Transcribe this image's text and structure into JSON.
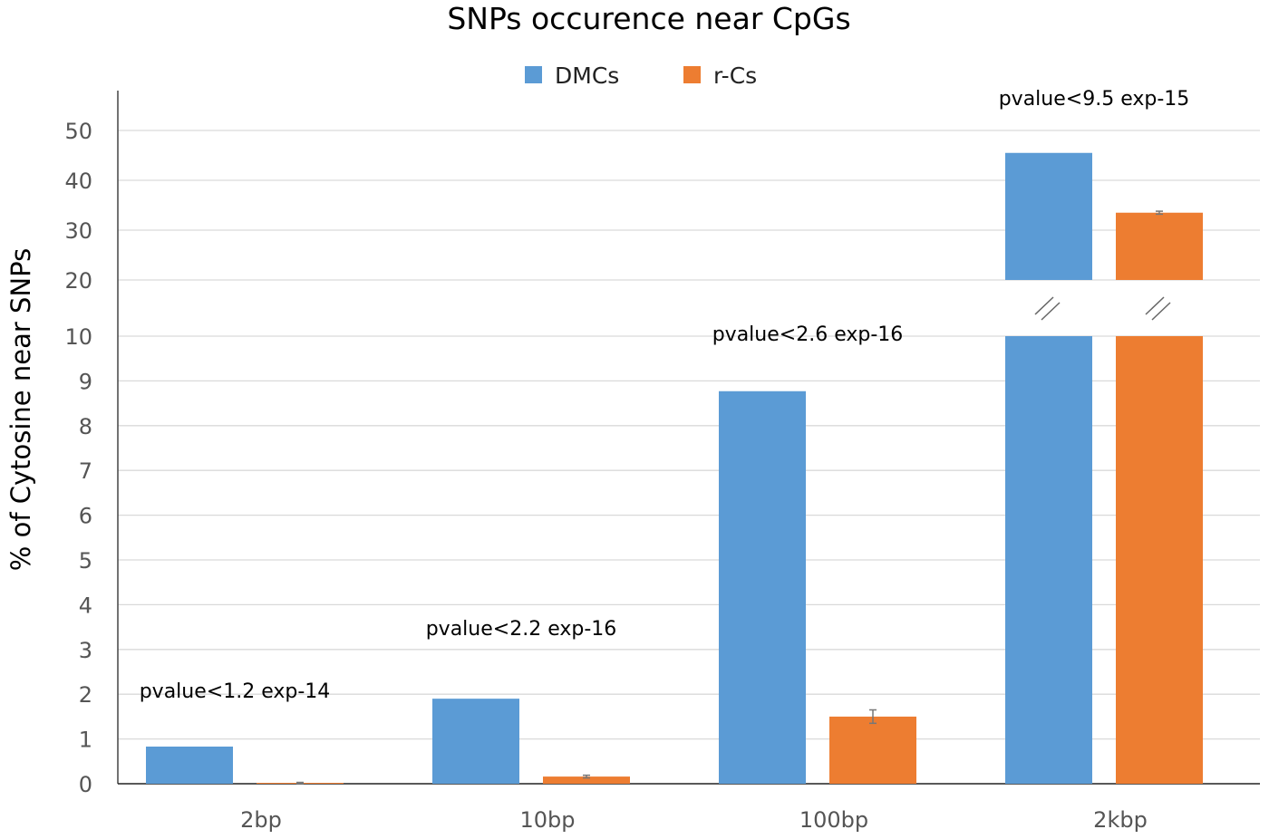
{
  "chart_data": {
    "type": "bar",
    "title": "SNPs occurence near CpGs",
    "xlabel": "",
    "ylabel": "% of Cytosine near SNPs",
    "categories": [
      "2bp",
      "10bp",
      "100bp",
      "2kbp"
    ],
    "series": [
      {
        "name": "DMCs",
        "color": "#5b9bd5",
        "values": [
          0.83,
          1.9,
          8.77,
          45.5
        ]
      },
      {
        "name": "r-Cs",
        "color": "#ed7d31",
        "values": [
          0.02,
          0.16,
          1.5,
          33.5
        ],
        "errors": [
          0.01,
          0.03,
          0.15,
          0.3
        ]
      }
    ],
    "annotations": [
      "pvalue<1.2 exp-14",
      "pvalue<2.2 exp-16",
      "pvalue<2.6 exp-16",
      "pvalue<9.5 exp-15"
    ],
    "y_axis": {
      "broken": true,
      "lower_range": [
        0,
        10
      ],
      "upper_range": [
        20,
        50
      ],
      "lower_ticks": [
        "0",
        "1",
        "2",
        "3",
        "4",
        "5",
        "6",
        "7",
        "8",
        "9",
        "10"
      ],
      "upper_ticks": [
        "20",
        "30",
        "40",
        "50"
      ]
    },
    "grid": true,
    "legend_placement": "top"
  }
}
